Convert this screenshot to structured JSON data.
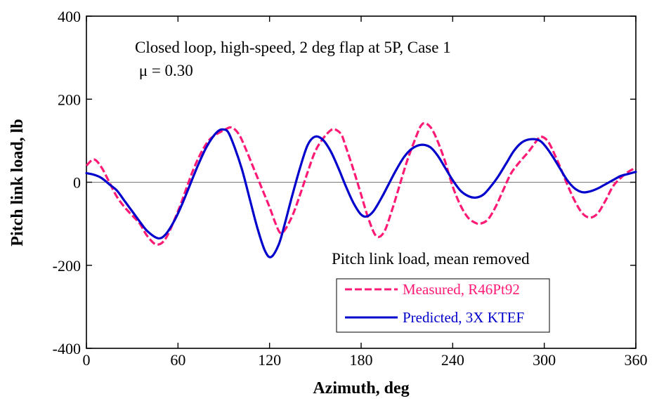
{
  "chart_data": {
    "type": "line",
    "xlabel": "Azimuth, deg",
    "ylabel": "Pitch link load, lb",
    "xlim": [
      0,
      360
    ],
    "ylim": [
      -400,
      400
    ],
    "xticks": [
      0,
      60,
      120,
      180,
      240,
      300,
      360
    ],
    "yticks": [
      -400,
      -200,
      0,
      200,
      400
    ],
    "grid": false,
    "zero_line": true,
    "annotations": {
      "line1": "Closed loop, high-speed, 2 deg flap at 5P, Case 1",
      "line2": " μ = 0.30",
      "legend_title": "Pitch link load, mean removed"
    },
    "legend_position": "lower-right",
    "series": [
      {
        "name": "Measured, R46Pt92",
        "color": "#ff1a75",
        "style": "dashed",
        "points": [
          [
            0,
            40
          ],
          [
            5,
            55
          ],
          [
            10,
            35
          ],
          [
            15,
            0
          ],
          [
            20,
            -35
          ],
          [
            25,
            -60
          ],
          [
            30,
            -80
          ],
          [
            35,
            -100
          ],
          [
            40,
            -130
          ],
          [
            46,
            -150
          ],
          [
            52,
            -135
          ],
          [
            60,
            -70
          ],
          [
            65,
            -20
          ],
          [
            70,
            30
          ],
          [
            75,
            70
          ],
          [
            80,
            100
          ],
          [
            85,
            115
          ],
          [
            90,
            125
          ],
          [
            95,
            132
          ],
          [
            100,
            115
          ],
          [
            105,
            75
          ],
          [
            110,
            30
          ],
          [
            115,
            -15
          ],
          [
            120,
            -60
          ],
          [
            124,
            -100
          ],
          [
            127,
            -122
          ],
          [
            130,
            -115
          ],
          [
            135,
            -80
          ],
          [
            140,
            -30
          ],
          [
            145,
            25
          ],
          [
            150,
            75
          ],
          [
            155,
            105
          ],
          [
            160,
            125
          ],
          [
            163,
            127
          ],
          [
            167,
            115
          ],
          [
            170,
            85
          ],
          [
            175,
            30
          ],
          [
            180,
            -30
          ],
          [
            185,
            -90
          ],
          [
            190,
            -130
          ],
          [
            195,
            -120
          ],
          [
            200,
            -70
          ],
          [
            205,
            -10
          ],
          [
            210,
            50
          ],
          [
            215,
            100
          ],
          [
            219,
            135
          ],
          [
            222,
            142
          ],
          [
            226,
            130
          ],
          [
            230,
            100
          ],
          [
            235,
            50
          ],
          [
            240,
            -10
          ],
          [
            245,
            -55
          ],
          [
            250,
            -85
          ],
          [
            255,
            -98
          ],
          [
            258,
            -100
          ],
          [
            263,
            -90
          ],
          [
            268,
            -60
          ],
          [
            273,
            -20
          ],
          [
            278,
            20
          ],
          [
            283,
            45
          ],
          [
            290,
            75
          ],
          [
            295,
            100
          ],
          [
            298,
            110
          ],
          [
            303,
            95
          ],
          [
            310,
            40
          ],
          [
            315,
            -5
          ],
          [
            320,
            -45
          ],
          [
            325,
            -75
          ],
          [
            330,
            -85
          ],
          [
            335,
            -75
          ],
          [
            340,
            -45
          ],
          [
            345,
            -10
          ],
          [
            350,
            10
          ],
          [
            355,
            25
          ],
          [
            360,
            35
          ]
        ]
      },
      {
        "name": "Predicted, 3X KTEF",
        "color": "#0000cc",
        "style": "solid",
        "points": [
          [
            0,
            22
          ],
          [
            5,
            18
          ],
          [
            10,
            10
          ],
          [
            15,
            -5
          ],
          [
            20,
            -20
          ],
          [
            25,
            -45
          ],
          [
            30,
            -70
          ],
          [
            35,
            -95
          ],
          [
            40,
            -118
          ],
          [
            47,
            -135
          ],
          [
            52,
            -125
          ],
          [
            58,
            -90
          ],
          [
            63,
            -50
          ],
          [
            68,
            -5
          ],
          [
            73,
            40
          ],
          [
            78,
            80
          ],
          [
            83,
            110
          ],
          [
            87,
            125
          ],
          [
            90,
            127
          ],
          [
            93,
            120
          ],
          [
            97,
            85
          ],
          [
            102,
            30
          ],
          [
            107,
            -40
          ],
          [
            112,
            -110
          ],
          [
            117,
            -165
          ],
          [
            121,
            -180
          ],
          [
            126,
            -150
          ],
          [
            130,
            -100
          ],
          [
            135,
            -30
          ],
          [
            140,
            35
          ],
          [
            145,
            90
          ],
          [
            150,
            110
          ],
          [
            155,
            102
          ],
          [
            160,
            75
          ],
          [
            165,
            35
          ],
          [
            170,
            -10
          ],
          [
            175,
            -50
          ],
          [
            180,
            -78
          ],
          [
            184,
            -82
          ],
          [
            188,
            -70
          ],
          [
            193,
            -40
          ],
          [
            198,
            -5
          ],
          [
            203,
            30
          ],
          [
            208,
            60
          ],
          [
            213,
            80
          ],
          [
            219,
            90
          ],
          [
            225,
            85
          ],
          [
            230,
            65
          ],
          [
            235,
            35
          ],
          [
            240,
            5
          ],
          [
            245,
            -20
          ],
          [
            250,
            -33
          ],
          [
            255,
            -37
          ],
          [
            260,
            -30
          ],
          [
            265,
            -10
          ],
          [
            270,
            15
          ],
          [
            275,
            45
          ],
          [
            280,
            75
          ],
          [
            285,
            95
          ],
          [
            290,
            103
          ],
          [
            296,
            102
          ],
          [
            300,
            90
          ],
          [
            305,
            65
          ],
          [
            310,
            35
          ],
          [
            315,
            5
          ],
          [
            320,
            -15
          ],
          [
            325,
            -24
          ],
          [
            330,
            -22
          ],
          [
            335,
            -15
          ],
          [
            340,
            -5
          ],
          [
            345,
            5
          ],
          [
            350,
            15
          ],
          [
            355,
            20
          ],
          [
            360,
            25
          ]
        ]
      }
    ]
  }
}
